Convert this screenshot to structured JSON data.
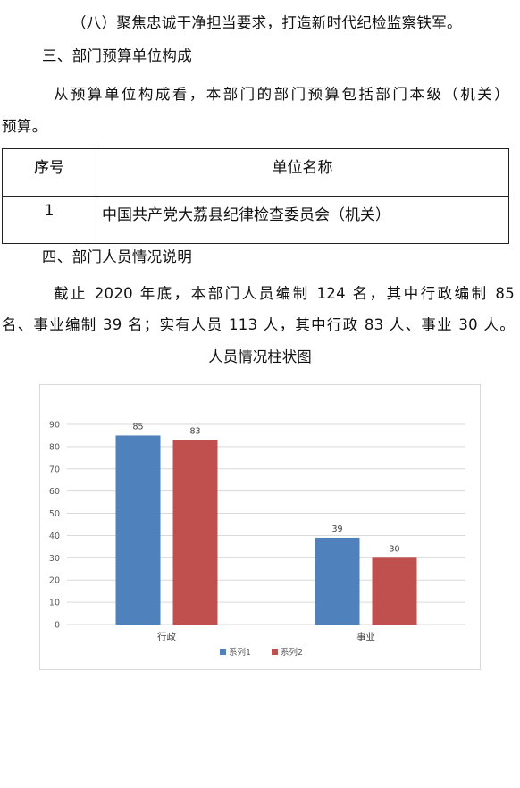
{
  "paragraphs": {
    "item8": "（八）聚焦忠诚干净担当要求，打造新时代纪检监察铁军。",
    "section3_heading": "三、部门预算单位构成",
    "section3_body_line1": "从预算单位构成看，本部门的部门预算包括部门本级（机关）",
    "section3_body_line2": "预算。",
    "section4_heading": "四、部门人员情况说明",
    "section4_body_line1": "截止 2020 年底，本部门人员编制 124 名，其中行政编制 85",
    "section4_body_line2": "名、事业编制 39 名；实有人员 113 人，其中行政 83 人、事业 30 人。"
  },
  "units_table": {
    "headers": [
      "序号",
      "单位名称"
    ],
    "rows": [
      [
        "1",
        "中国共产党大荔县纪律检查委员会（机关）"
      ]
    ]
  },
  "chart_title": "人员情况柱状图",
  "chart_data": {
    "type": "bar",
    "categories": [
      "行政",
      "事业"
    ],
    "series": [
      {
        "name": "系列1",
        "values": [
          85,
          39
        ],
        "color": "#4f81bd"
      },
      {
        "name": "系列2",
        "values": [
          83,
          30
        ],
        "color": "#c0504d"
      }
    ],
    "ylim": [
      0,
      90
    ],
    "yticks": [
      0,
      10,
      20,
      30,
      40,
      50,
      60,
      70,
      80,
      90
    ],
    "grid": true,
    "legend_position": "bottom"
  }
}
